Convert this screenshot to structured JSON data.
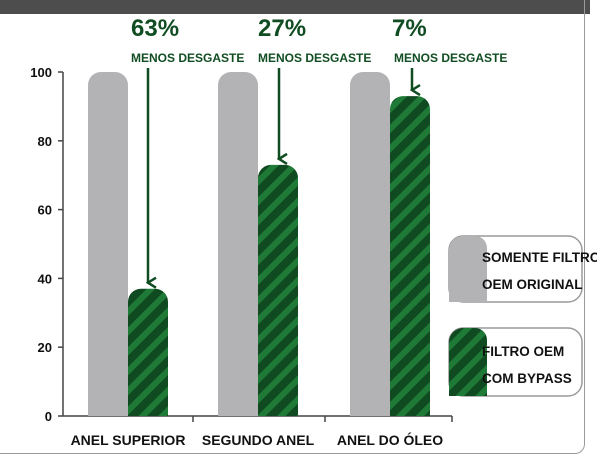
{
  "colors": {
    "header_bar": "#4d4d4d",
    "bar_grey": "#b3b3b5",
    "bar_green": "#0f4a20",
    "stripe_green": "#1f7a37",
    "annotation_green": "#114d22",
    "axis": "#444444"
  },
  "chart_data": {
    "type": "bar",
    "categories": [
      "ANEL SUPERIOR",
      "SEGUNDO ANEL",
      "ANEL DO ÓLEO"
    ],
    "series": [
      {
        "name": "SOMENTE FILTRO OEM ORIGINAL",
        "values": [
          100,
          100,
          100
        ]
      },
      {
        "name": "FILTRO OEM COM BYPASS",
        "values": [
          37,
          73,
          93
        ]
      }
    ],
    "yticks": [
      "0",
      "20",
      "40",
      "60",
      "80",
      "100"
    ],
    "ylim": [
      0,
      100
    ],
    "annotations": [
      {
        "percent": "63%",
        "text": "MENOS DESGASTE"
      },
      {
        "percent": "27%",
        "text": "MENOS DESGASTE"
      },
      {
        "percent": "7%",
        "text": "MENOS DESGASTE"
      }
    ],
    "legend": [
      {
        "line1": "SOMENTE FILTRO",
        "line2": "OEM ORIGINAL"
      },
      {
        "line1": "FILTRO OEM",
        "line2": "COM BYPASS"
      }
    ],
    "legend_position": "right",
    "grid": false
  }
}
